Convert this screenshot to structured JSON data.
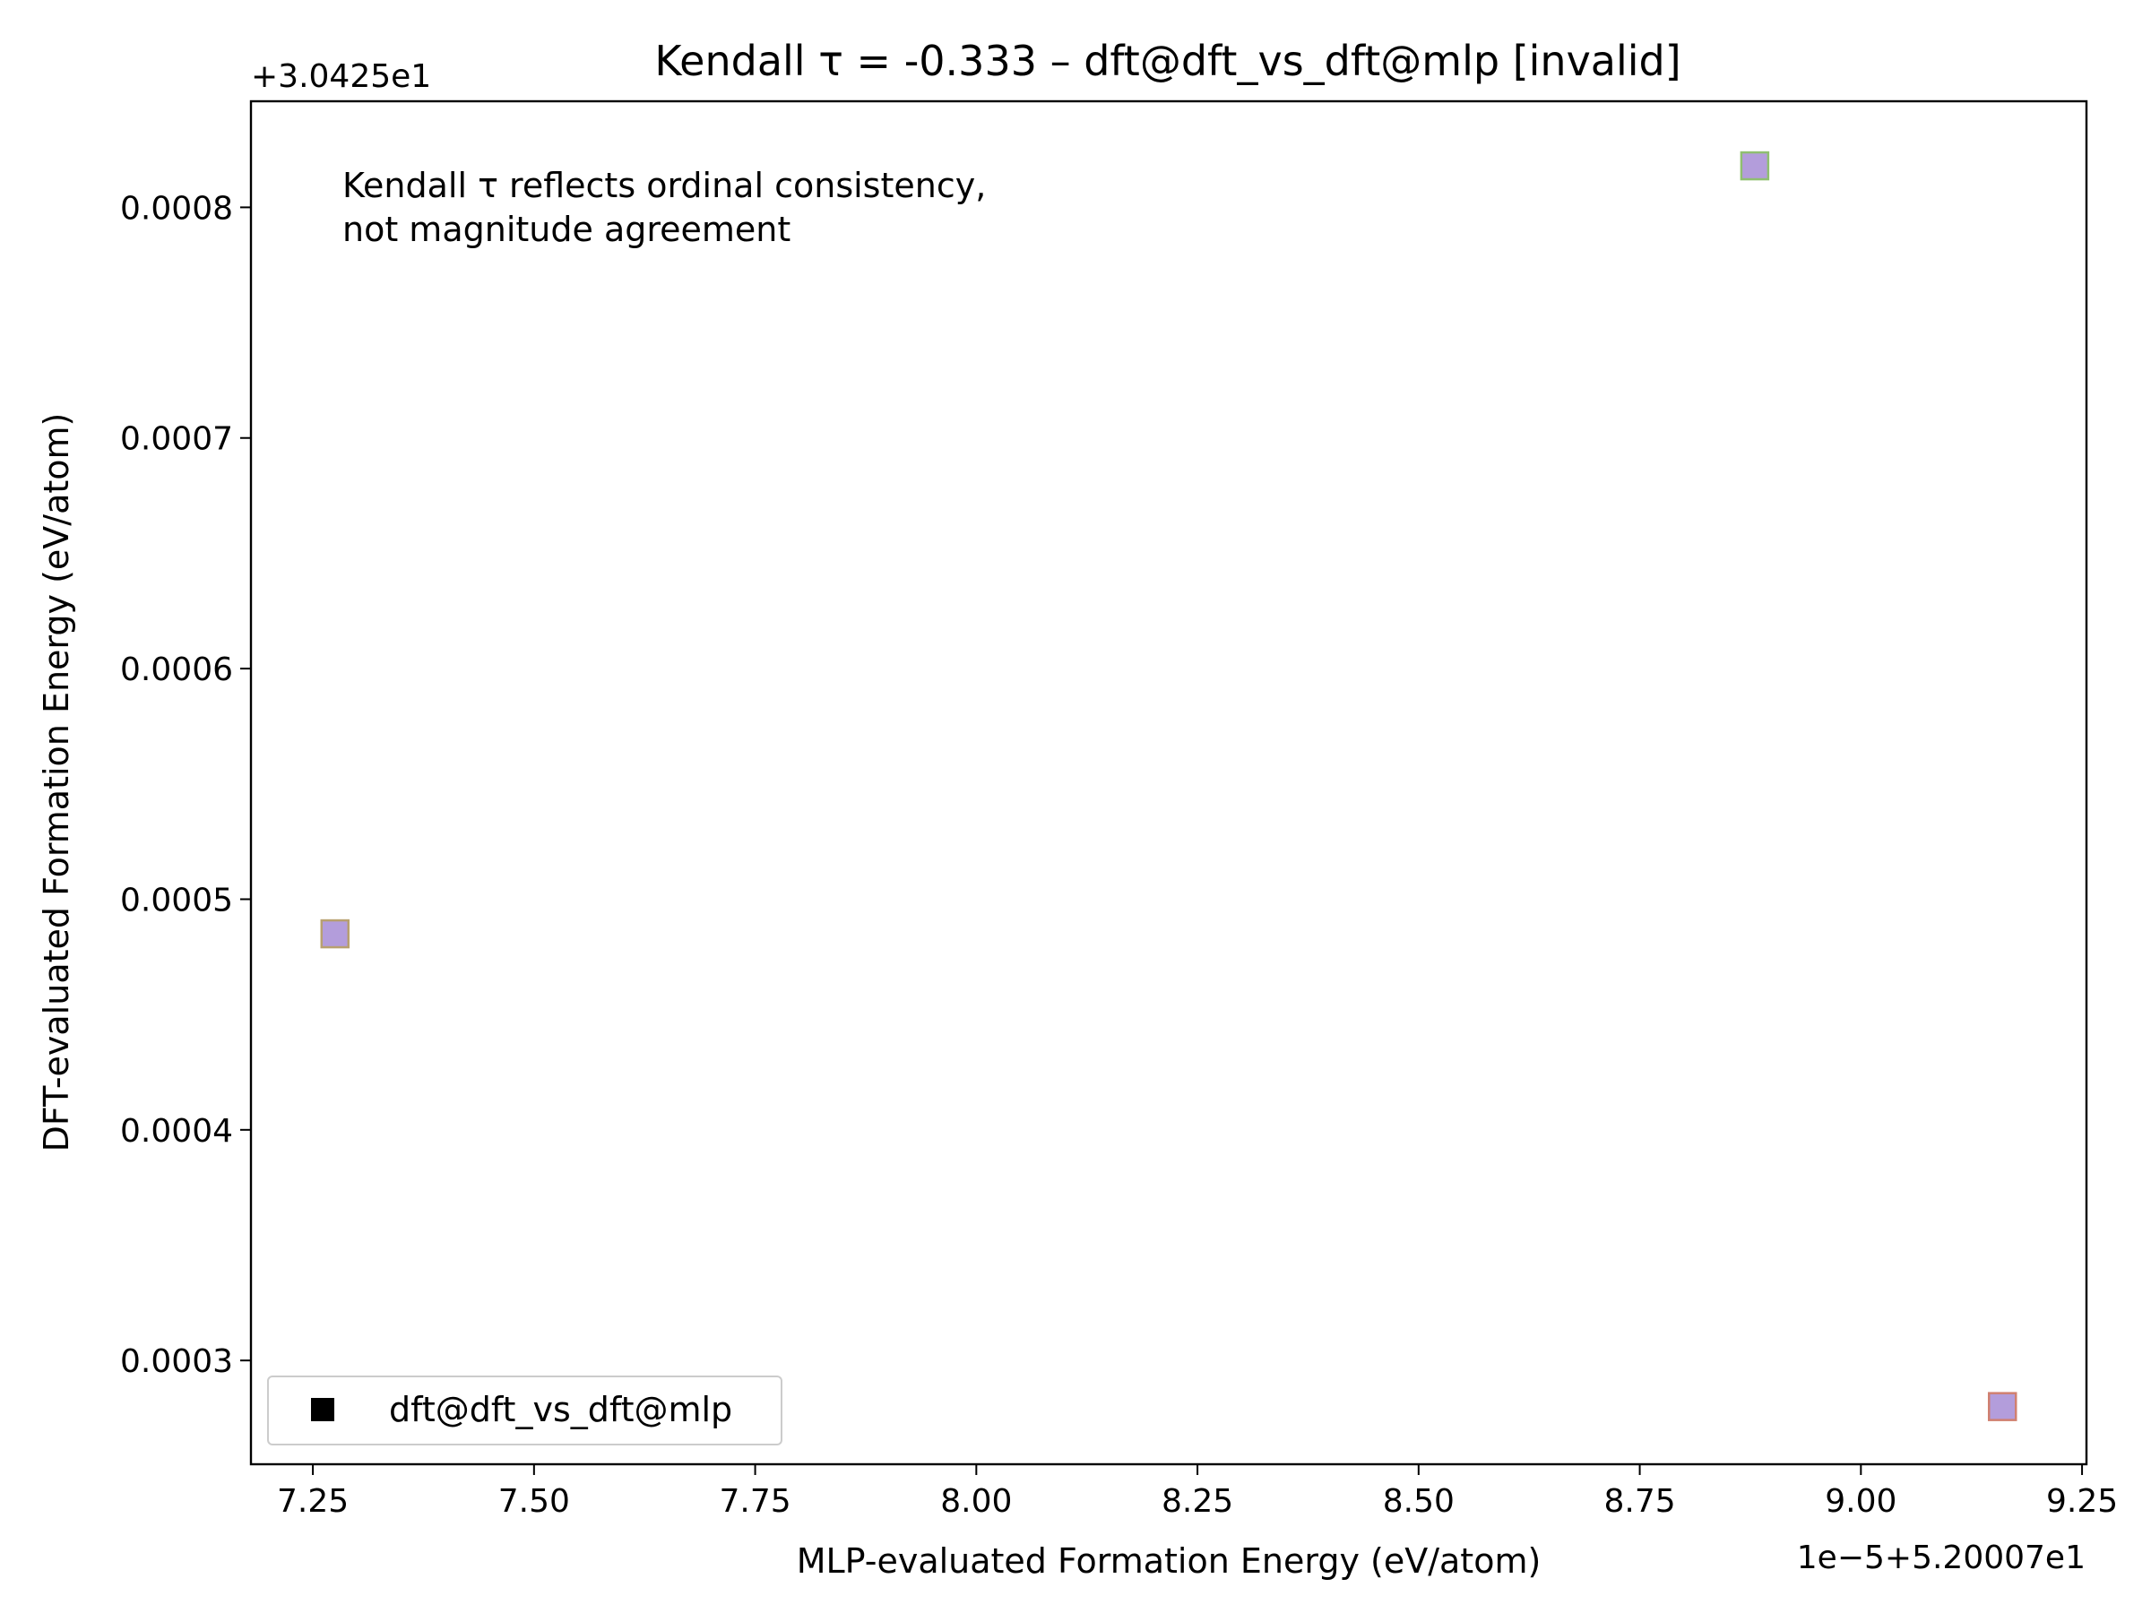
{
  "chart_data": {
    "type": "scatter",
    "title": "Kendall τ = -0.333 – dft@dft_vs_dft@mlp [invalid]",
    "xlabel": "MLP-evaluated Formation Energy (eV/atom)",
    "ylabel": "DFT-evaluated Formation Energy (eV/atom)",
    "x_offset_label": "1e−5+5.20007e1",
    "y_offset_label": "+3.0425e1",
    "x_ticks": [
      "7.25",
      "7.50",
      "7.75",
      "8.00",
      "8.25",
      "8.50",
      "8.75",
      "9.00",
      "9.25"
    ],
    "y_ticks": [
      "0.0003",
      "0.0004",
      "0.0005",
      "0.0006",
      "0.0007",
      "0.0008"
    ],
    "xlim": [
      7.18,
      9.255
    ],
    "ylim": [
      0.000255,
      0.000846
    ],
    "annotation": [
      "Kendall τ reflects ordinal consistency,",
      "not magnitude agreement"
    ],
    "grid": false,
    "legend_position": "lower-left",
    "series": [
      {
        "name": "dft@dft_vs_dft@mlp",
        "marker": "square",
        "points": [
          {
            "x": 7.275,
            "y": 0.000485,
            "fill": "#b39ddb",
            "edge": "#b8a070"
          },
          {
            "x": 8.88,
            "y": 0.000818,
            "fill": "#b39ddb",
            "edge": "#8fbf70"
          },
          {
            "x": 9.16,
            "y": 0.00028,
            "fill": "#b39ddb",
            "edge": "#d08070"
          }
        ]
      }
    ]
  }
}
